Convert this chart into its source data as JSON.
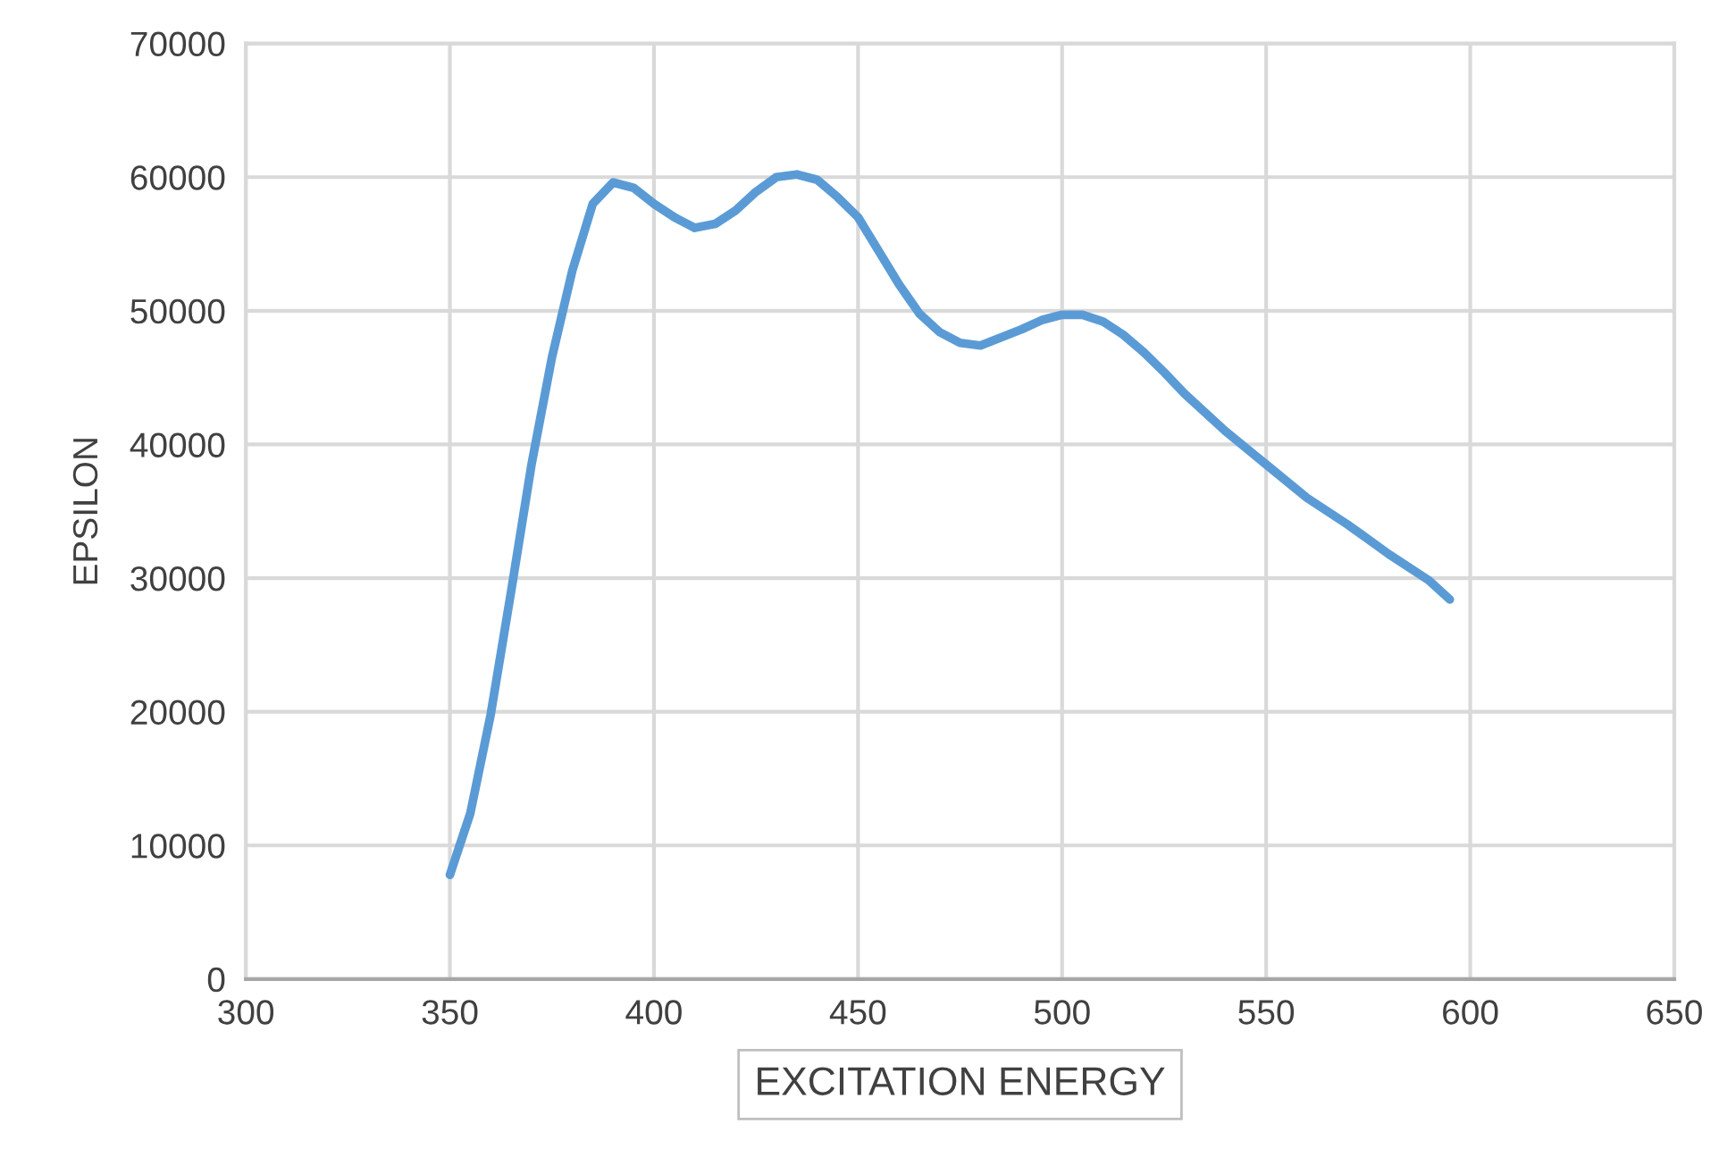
{
  "chart_data": {
    "type": "line",
    "xlabel": "EXCITATION ENERGY",
    "ylabel": "EPSILON",
    "xlim": [
      300,
      650
    ],
    "xticks": [
      300,
      350,
      400,
      450,
      500,
      550,
      600,
      650
    ],
    "ylim": [
      0,
      70000
    ],
    "yticks": [
      0,
      10000,
      20000,
      30000,
      40000,
      50000,
      60000,
      70000
    ],
    "grid": true,
    "marker": "none",
    "line_style": "solid",
    "series": [
      {
        "color": "#5b9bd5",
        "x": [
          350,
          355,
          360,
          365,
          370,
          375,
          380,
          385,
          390,
          395,
          400,
          405,
          410,
          415,
          420,
          425,
          430,
          435,
          440,
          445,
          450,
          455,
          460,
          465,
          470,
          475,
          480,
          485,
          490,
          495,
          500,
          505,
          510,
          515,
          520,
          525,
          530,
          540,
          550,
          560,
          570,
          580,
          590,
          595
        ],
        "values": [
          7800,
          12400,
          19800,
          29000,
          38500,
          46500,
          53000,
          58000,
          59600,
          59200,
          58000,
          57000,
          56200,
          56500,
          57500,
          58900,
          60000,
          60200,
          59800,
          58500,
          57000,
          54500,
          52000,
          49800,
          48400,
          47600,
          47400,
          48000,
          48600,
          49300,
          49700,
          49700,
          49200,
          48200,
          46900,
          45400,
          43800,
          41000,
          38500,
          36000,
          34000,
          31800,
          29800,
          28400
        ]
      }
    ]
  }
}
